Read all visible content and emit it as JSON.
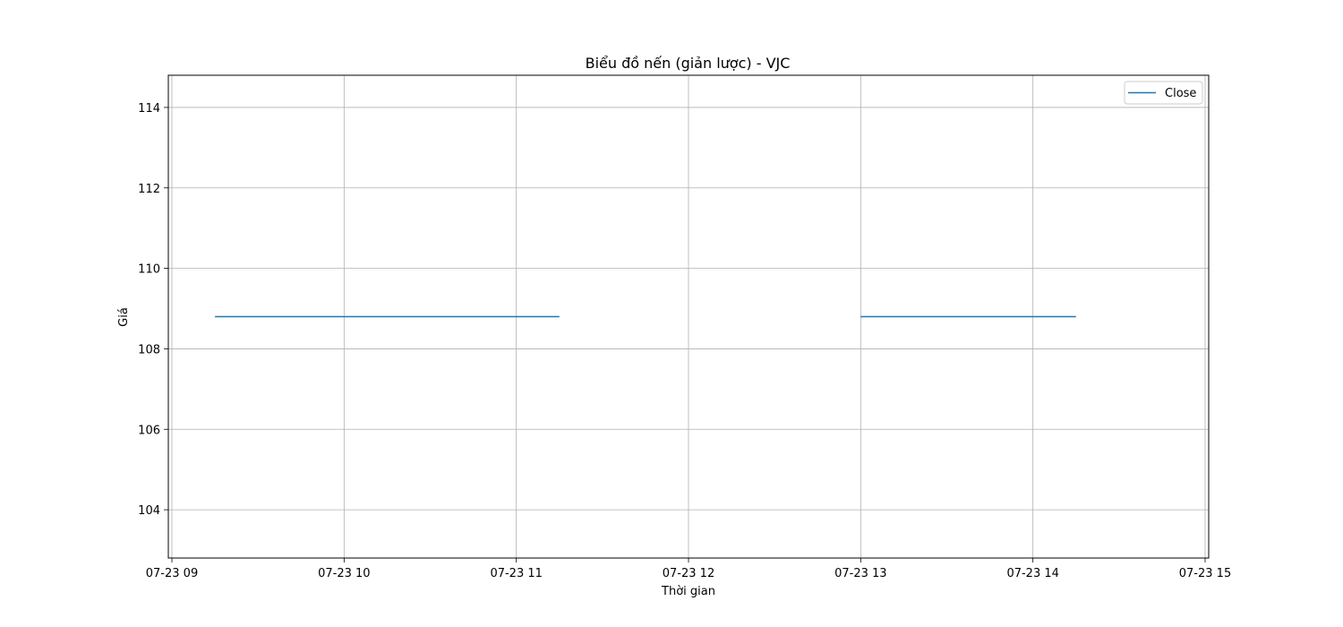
{
  "chart_data": {
    "type": "line",
    "title": "Biểu đồ nến (giản lược) - VJC",
    "xlabel": "Thời gian",
    "ylabel": "Giá",
    "x_ticks": [
      "07-23 09",
      "07-23 10",
      "07-23 11",
      "07-23 12",
      "07-23 13",
      "07-23 14",
      "07-23 15"
    ],
    "x_range": [
      "07-23 09:00",
      "07-23 15:00"
    ],
    "y_ticks": [
      104,
      106,
      108,
      110,
      112,
      114
    ],
    "ylim": [
      102.8,
      114.8
    ],
    "grid": true,
    "legend_position": "top-right",
    "series": [
      {
        "name": "Close",
        "color": "#1f77b4",
        "segments": [
          {
            "x": [
              "07-23 09:15",
              "07-23 11:15"
            ],
            "y": [
              108.8,
              108.8
            ]
          },
          {
            "x": [
              "07-23 13:00",
              "07-23 14:15"
            ],
            "y": [
              108.8,
              108.8
            ]
          }
        ]
      }
    ]
  }
}
